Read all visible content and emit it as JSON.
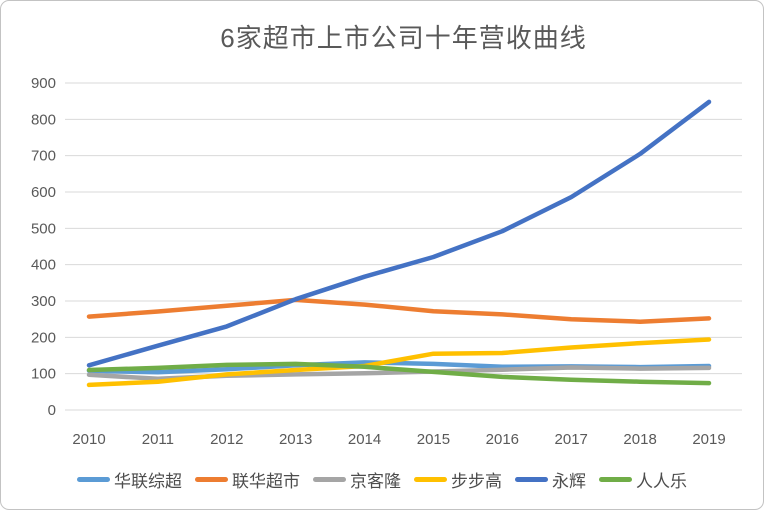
{
  "window": {
    "background": "#ffffff",
    "border_color": "#c3c3c3"
  },
  "chart_data": {
    "type": "line",
    "title": "6家超市上市公司十年营收曲线",
    "title_color": "#595959",
    "categories": [
      "2010",
      "2011",
      "2012",
      "2013",
      "2014",
      "2015",
      "2016",
      "2017",
      "2018",
      "2019"
    ],
    "series": [
      {
        "name": "华联综超",
        "color": "#5B9BD5",
        "values": [
          108,
          104,
          112,
          123,
          131,
          127,
          119,
          120,
          118,
          121
        ]
      },
      {
        "name": "联华超市",
        "color": "#ED7D31",
        "values": [
          257,
          271,
          287,
          303,
          290,
          272,
          263,
          250,
          243,
          252
        ]
      },
      {
        "name": "京客隆",
        "color": "#A5A5A5",
        "values": [
          97,
          86,
          94,
          98,
          101,
          106,
          111,
          117,
          114,
          116
        ]
      },
      {
        "name": "步步高",
        "color": "#FFC000",
        "values": [
          69,
          78,
          98,
          110,
          121,
          155,
          157,
          172,
          184,
          194
        ]
      },
      {
        "name": "永辉",
        "color": "#4472C4",
        "values": [
          123,
          177,
          230,
          305,
          367,
          421,
          492,
          586,
          705,
          848
        ]
      },
      {
        "name": "人人乐",
        "color": "#70AD47",
        "values": [
          110,
          116,
          124,
          127,
          119,
          105,
          91,
          83,
          78,
          74
        ]
      }
    ],
    "xlabel": "",
    "ylabel": "",
    "ylim": [
      0,
      900
    ],
    "yticks": [
      0,
      100,
      200,
      300,
      400,
      500,
      600,
      700,
      800,
      900
    ],
    "grid": "horizontal",
    "gridline_color": "#d9d9d9",
    "axis_text_color": "#595959",
    "legend_position": "bottom"
  }
}
